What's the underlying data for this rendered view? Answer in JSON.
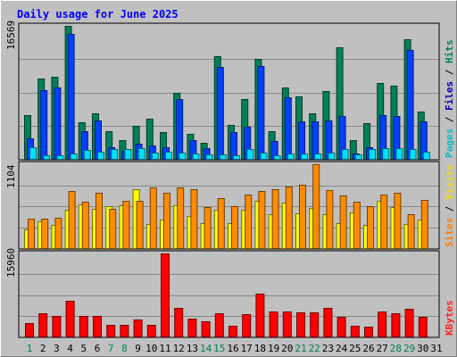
{
  "chart_data": {
    "type": "bar",
    "title": "Daily usage for June 2025",
    "days": [
      "1",
      "2",
      "3",
      "4",
      "5",
      "6",
      "7",
      "8",
      "9",
      "10",
      "11",
      "12",
      "13",
      "14",
      "15",
      "16",
      "17",
      "18",
      "19",
      "20",
      "21",
      "22",
      "23",
      "24",
      "25",
      "26",
      "27",
      "28",
      "29",
      "30",
      "31"
    ],
    "weekend_days": [
      "1",
      "7",
      "8",
      "14",
      "15",
      "21",
      "22",
      "28",
      "29"
    ],
    "panels": [
      {
        "name": "top",
        "ymax_label": "16569",
        "ymax": 16569,
        "legend": [
          {
            "text": "Pages",
            "color": "#00c0c0"
          },
          {
            "text": "Files",
            "color": "#0000c0"
          },
          {
            "text": "Hits",
            "color": "#008060"
          }
        ],
        "separator": " / ",
        "series": [
          {
            "name": "Hits",
            "color": "#00805a",
            "values": [
              5500,
              10000,
              10200,
              16569,
              4600,
              5700,
              3400,
              2300,
              4100,
              5000,
              3300,
              8200,
              3100,
              2000,
              12800,
              4200,
              7400,
              12400,
              3500,
              8900,
              7800,
              5700,
              8500,
              13900,
              2300,
              4400,
              9500,
              9100,
              14900,
              5900,
              0
            ]
          },
          {
            "name": "Files",
            "color": "#0040ff",
            "values": [
              2600,
              8600,
              8900,
              15600,
              3500,
              4800,
              1500,
              1000,
              1900,
              1700,
              1500,
              7400,
              2300,
              1300,
              11500,
              3300,
              4000,
              11600,
              2200,
              7700,
              4700,
              4700,
              4800,
              5300,
              700,
              1400,
              5400,
              5300,
              13600,
              4700,
              0
            ]
          },
          {
            "name": "Pages",
            "color": "#00e0ff",
            "values": [
              1500,
              500,
              500,
              700,
              1100,
              900,
              1200,
              1200,
              1300,
              800,
              900,
              800,
              700,
              600,
              600,
              500,
              1200,
              800,
              500,
              700,
              700,
              700,
              800,
              1200,
              600,
              1200,
              1300,
              1300,
              1200,
              900,
              0
            ]
          }
        ]
      },
      {
        "name": "middle",
        "ymax_label": "1104",
        "ymax": 1104,
        "legend": [
          {
            "text": "Sites",
            "color": "#ff8000"
          },
          {
            "text": "Visits",
            "color": "#f0e000"
          }
        ],
        "separator": " / ",
        "series": [
          {
            "name": "Visits",
            "color": "#ffff00",
            "values": [
              250,
              350,
              300,
              500,
              580,
              520,
              550,
              560,
              780,
              320,
              380,
              560,
              420,
              330,
              500,
              330,
              500,
              620,
              450,
              600,
              460,
              530,
              450,
              330,
              470,
              300,
              620,
              540,
              320,
              380,
              0
            ]
          },
          {
            "name": "Sites",
            "color": "#ff8c00",
            "values": [
              390,
              390,
              400,
              750,
              610,
              730,
              520,
              620,
              620,
              800,
              730,
              800,
              770,
              540,
              660,
              550,
              700,
              750,
              770,
              810,
              830,
              1104,
              760,
              690,
              610,
              550,
              700,
              730,
              450,
              630,
              0
            ]
          }
        ]
      },
      {
        "name": "bottom",
        "ymax_label": "15960",
        "ymax": 15960,
        "legend": [
          {
            "text": "KBytes",
            "color": "#ff2020"
          }
        ],
        "separator": "",
        "series": [
          {
            "name": "KBytes",
            "color": "#ff0000",
            "values": [
              2500,
              4500,
              4000,
              6800,
              3900,
              4000,
              2200,
              2300,
              3200,
              2300,
              15960,
              5500,
              3500,
              3000,
              4400,
              2000,
              4300,
              8200,
              4800,
              4800,
              4700,
              4700,
              5500,
              3800,
              2000,
              1900,
              4800,
              4400,
              5300,
              3700,
              0
            ]
          }
        ]
      }
    ]
  }
}
